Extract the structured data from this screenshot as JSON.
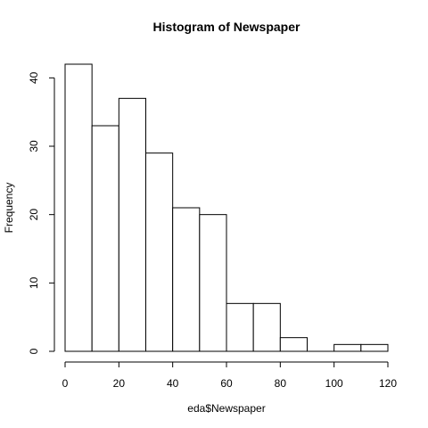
{
  "chart_data": {
    "type": "bar",
    "title": "Histogram of Newspaper",
    "xlabel": "eda$Newspaper",
    "ylabel": "Frequency",
    "bins": [
      [
        0,
        10
      ],
      [
        10,
        20
      ],
      [
        20,
        30
      ],
      [
        30,
        40
      ],
      [
        40,
        50
      ],
      [
        50,
        60
      ],
      [
        60,
        70
      ],
      [
        70,
        80
      ],
      [
        80,
        90
      ],
      [
        90,
        100
      ],
      [
        100,
        110
      ],
      [
        110,
        120
      ]
    ],
    "values": [
      42,
      33,
      37,
      29,
      21,
      20,
      7,
      7,
      2,
      0,
      1,
      1
    ],
    "xlim": [
      0,
      120
    ],
    "ylim": [
      0,
      42
    ],
    "xticks": [
      0,
      20,
      40,
      60,
      80,
      100,
      120
    ],
    "yticks": [
      0,
      10,
      20,
      30,
      40
    ],
    "grid": false,
    "colors": {
      "bar_fill": "#ffffff",
      "bar_stroke": "#000000"
    }
  }
}
